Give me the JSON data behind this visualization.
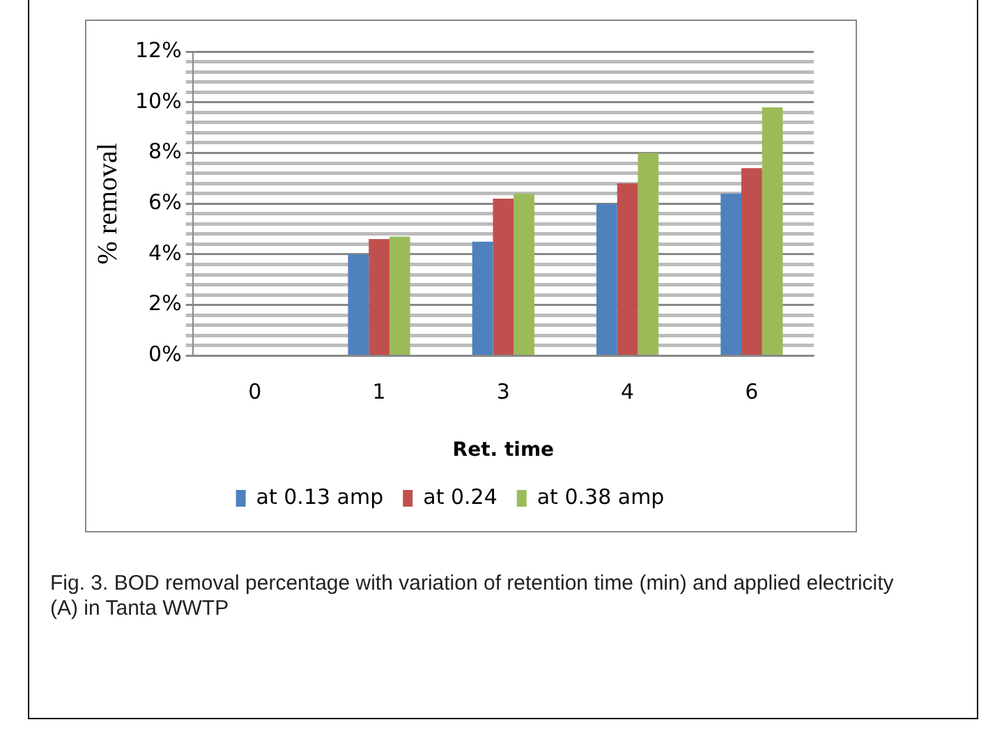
{
  "chart_data": {
    "type": "bar",
    "xlabel": "Ret. time",
    "ylabel": "% removal",
    "categories": [
      "0",
      "1",
      "3",
      "4",
      "6"
    ],
    "series": [
      {
        "name": "at 0.13 amp",
        "color": "#4f81bd",
        "values": [
          0,
          4.0,
          4.5,
          6.0,
          6.4
        ]
      },
      {
        "name": "at 0.24",
        "color": "#c0504d",
        "values": [
          0,
          4.6,
          6.2,
          6.8,
          7.4
        ]
      },
      {
        "name": "at 0.38 amp",
        "color": "#9bbb59",
        "values": [
          0,
          4.7,
          6.4,
          8.0,
          9.8
        ]
      }
    ],
    "ylim": [
      0,
      12
    ],
    "yticks": [
      {
        "value": 0,
        "label": "0%"
      },
      {
        "value": 0.4,
        "label": null
      },
      {
        "value": 0.8,
        "label": null
      },
      {
        "value": 1.2,
        "label": null
      },
      {
        "value": 1.6,
        "label": null
      },
      {
        "value": 2,
        "label": "2%"
      },
      {
        "value": 2.4,
        "label": null
      },
      {
        "value": 2.8,
        "label": null
      },
      {
        "value": 3.2,
        "label": null
      },
      {
        "value": 3.6,
        "label": null
      },
      {
        "value": 4,
        "label": "4%"
      },
      {
        "value": 4.4,
        "label": null
      },
      {
        "value": 4.8,
        "label": null
      },
      {
        "value": 5.2,
        "label": null
      },
      {
        "value": 5.6,
        "label": null
      },
      {
        "value": 6,
        "label": "6%"
      },
      {
        "value": 6.4,
        "label": null
      },
      {
        "value": 6.8,
        "label": null
      },
      {
        "value": 7.2,
        "label": null
      },
      {
        "value": 7.6,
        "label": null
      },
      {
        "value": 8,
        "label": "8%"
      },
      {
        "value": 8.4,
        "label": null
      },
      {
        "value": 8.8,
        "label": null
      },
      {
        "value": 9.2,
        "label": null
      },
      {
        "value": 9.6,
        "label": null
      },
      {
        "value": 10,
        "label": "10%"
      },
      {
        "value": 10.4,
        "label": null
      },
      {
        "value": 10.8,
        "label": null
      },
      {
        "value": 11.2,
        "label": null
      },
      {
        "value": 11.6,
        "label": null
      },
      {
        "value": 12,
        "label": "12%"
      }
    ],
    "grid": "y",
    "legend": "bottom",
    "annotations": [
      "Fig. 3. BOD removal percentage with variation of retention time (min) and applied electricity (A) in Tanta WWTP"
    ]
  }
}
